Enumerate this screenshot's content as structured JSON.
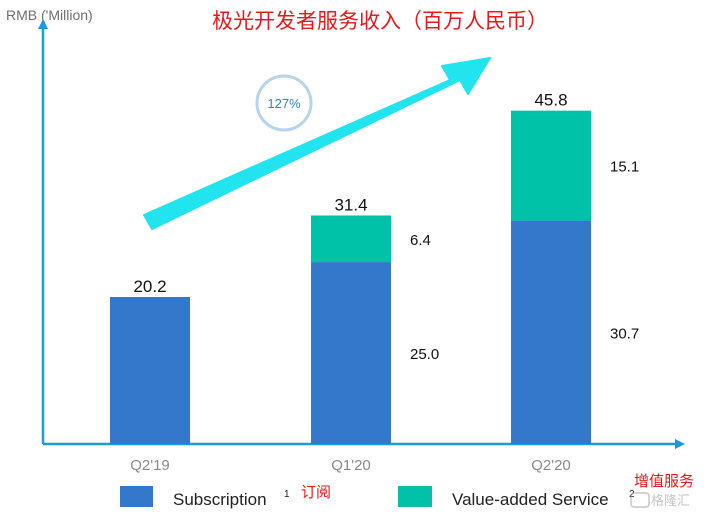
{
  "chart_data": {
    "type": "bar",
    "stacked": true,
    "title": "极光开发者服务收入（百万人民币）",
    "ylabel": "RMB ('Million)",
    "xlabel": "",
    "categories": [
      "Q2'19",
      "Q1'20",
      "Q2'20"
    ],
    "series": [
      {
        "name": "Subscription",
        "values": [
          20.2,
          25.0,
          30.7
        ]
      },
      {
        "name": "Value-added Service",
        "values": [
          null,
          6.4,
          15.1
        ]
      }
    ],
    "totals": [
      20.2,
      31.4,
      45.8
    ],
    "segment_labels": {
      "Subscription": [
        "",
        "25.0",
        "30.7"
      ],
      "Value-added Service": [
        "",
        "6.4",
        "15.1"
      ]
    },
    "total_labels": [
      "20.2",
      "31.4",
      "45.8"
    ],
    "ylim": [
      0,
      52
    ],
    "grid": false,
    "legend_position": "bottom",
    "annotation": "127%",
    "legend": {
      "subscription_label": "Subscription",
      "subscription_sup": "1",
      "subscription_cn": "订阅",
      "vas_label": "Value-added Service",
      "vas_sup": "2",
      "vas_cn": "增值服务"
    },
    "watermark": "格隆汇",
    "colors": {
      "subscription": "#3478CC",
      "value_added": "#00C2A8",
      "axis": "#1A9CD8",
      "trend_arrow": "#21E4EE",
      "title": "#E8191C",
      "cn_annotation": "#E8191C",
      "tick": "#8A8A8A",
      "bubble": "#B9D3EC",
      "bubble_text": "#2F84C8"
    }
  }
}
